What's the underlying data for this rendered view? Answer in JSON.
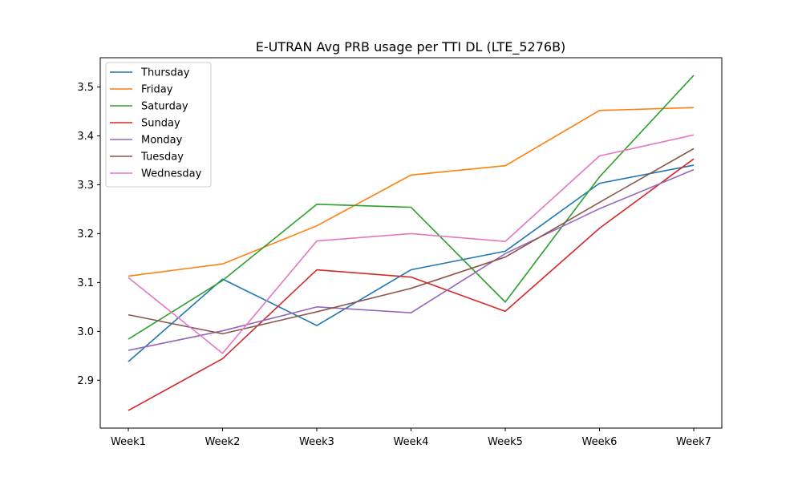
{
  "chart_data": {
    "type": "line",
    "title": "E-UTRAN Avg PRB usage per TTI DL (LTE_5276B)",
    "xlabel": "",
    "ylabel": "",
    "categories": [
      "Week1",
      "Week2",
      "Week3",
      "Week4",
      "Week5",
      "Week6",
      "Week7"
    ],
    "ylim": [
      2.802,
      3.56
    ],
    "yticks": [
      2.9,
      3.0,
      3.1,
      3.2,
      3.3,
      3.4,
      3.5
    ],
    "ytick_labels": [
      "2.9",
      "3.0",
      "3.1",
      "3.2",
      "3.3",
      "3.4",
      "3.5"
    ],
    "grid": false,
    "legend_position": "upper-left",
    "series": [
      {
        "name": "Thursday",
        "color": "#1f77b4",
        "values": [
          2.938,
          3.107,
          3.012,
          3.126,
          3.164,
          3.303,
          3.34
        ]
      },
      {
        "name": "Friday",
        "color": "#ff7f0e",
        "values": [
          3.113,
          3.138,
          3.216,
          3.32,
          3.339,
          3.452,
          3.458
        ]
      },
      {
        "name": "Saturday",
        "color": "#2ca02c",
        "values": [
          2.984,
          3.104,
          3.26,
          3.254,
          3.06,
          3.316,
          3.524
        ]
      },
      {
        "name": "Sunday",
        "color": "#d62728",
        "values": [
          2.838,
          2.944,
          3.126,
          3.111,
          3.041,
          3.211,
          3.353
        ]
      },
      {
        "name": "Monday",
        "color": "#9467bd",
        "values": [
          2.961,
          3.001,
          3.05,
          3.038,
          3.159,
          3.251,
          3.331
        ]
      },
      {
        "name": "Tuesday",
        "color": "#8c564b",
        "values": [
          3.034,
          2.995,
          3.04,
          3.088,
          3.152,
          3.264,
          3.374
        ]
      },
      {
        "name": "Wednesday",
        "color": "#e377c2",
        "values": [
          3.11,
          2.955,
          3.185,
          3.2,
          3.184,
          3.359,
          3.402
        ]
      }
    ]
  }
}
